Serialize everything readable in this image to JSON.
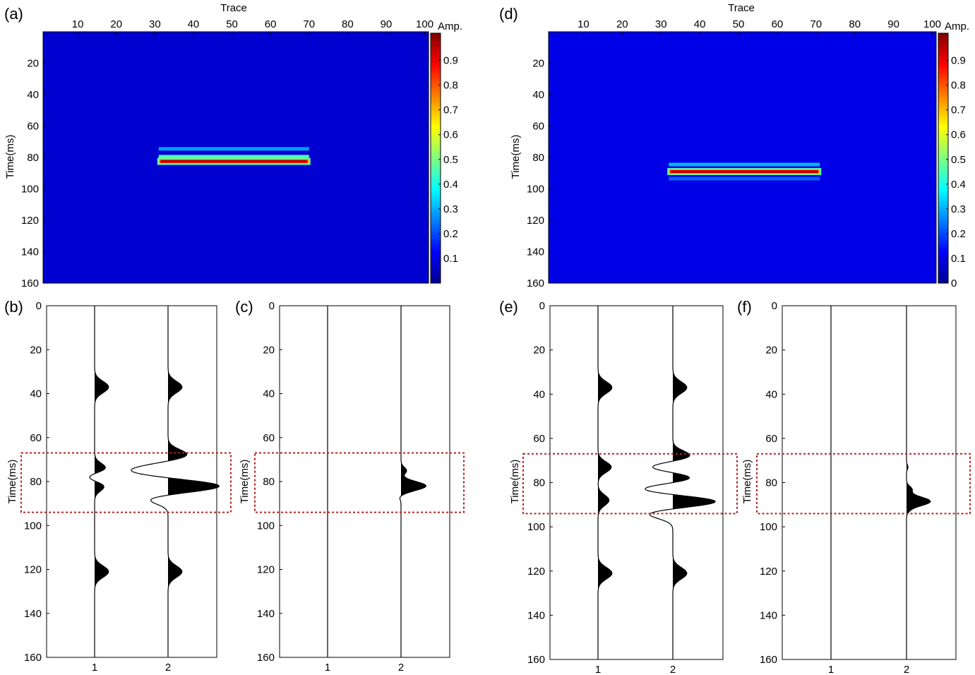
{
  "figure": {
    "panels": [
      {
        "id": "a",
        "label": "(a)",
        "type": "heatmap",
        "xlabel": "Trace",
        "ylabel": "Time(ms)",
        "colorbar_label": "Amp.",
        "xticks": [
          10,
          20,
          30,
          40,
          50,
          60,
          70,
          80,
          90,
          100
        ],
        "yticks": [
          20,
          40,
          60,
          80,
          100,
          120,
          140,
          160
        ],
        "colorbar_ticks": [
          "0.1",
          "0.2",
          "0.3",
          "0.4",
          "0.5",
          "0.6",
          "0.7",
          "0.8",
          "0.9"
        ]
      },
      {
        "id": "d",
        "label": "(d)",
        "type": "heatmap",
        "xlabel": "Trace",
        "ylabel": "Time(ms)",
        "colorbar_label": "Amp.",
        "xticks": [
          10,
          20,
          30,
          40,
          50,
          60,
          70,
          80,
          90,
          100
        ],
        "yticks": [
          20,
          40,
          60,
          80,
          100,
          120,
          140,
          160
        ],
        "colorbar_ticks": [
          "0",
          "0.1",
          "0.2",
          "0.3",
          "0.4",
          "0.5",
          "0.6",
          "0.7",
          "0.8",
          "0.9"
        ]
      },
      {
        "id": "b",
        "label": "(b)",
        "type": "wiggle",
        "ylabel": "Time(ms)",
        "xticks": [
          "1",
          "2"
        ],
        "yticks": [
          0,
          20,
          40,
          60,
          80,
          100,
          120,
          140,
          160
        ]
      },
      {
        "id": "c",
        "label": "(c)",
        "type": "wiggle",
        "ylabel": "Time(ms)",
        "xticks": [
          "1",
          "2"
        ],
        "yticks": [
          0,
          20,
          40,
          60,
          80,
          100,
          120,
          140,
          160
        ]
      },
      {
        "id": "e",
        "label": "(e)",
        "type": "wiggle",
        "ylabel": "Time(ms)",
        "xticks": [
          "1",
          "2"
        ],
        "yticks": [
          0,
          20,
          40,
          60,
          80,
          100,
          120,
          140,
          160
        ]
      },
      {
        "id": "f",
        "label": "(f)",
        "type": "wiggle",
        "ylabel": "Time(ms)",
        "xticks": [
          "1",
          "2"
        ],
        "yticks": [
          0,
          20,
          40,
          60,
          80,
          100,
          120,
          140,
          160
        ]
      }
    ]
  },
  "chart_data": [
    {
      "panel": "a",
      "type": "heatmap",
      "xlim": [
        1,
        101
      ],
      "ylim": [
        0,
        160
      ],
      "clim": [
        0,
        1
      ],
      "background_amplitude": 0.08,
      "reflectors": [
        {
          "x_range": [
            31,
            70
          ],
          "t": 74.5,
          "amplitude": 0.28
        },
        {
          "x_range": [
            31,
            70
          ],
          "t": 79.5,
          "amplitude": 0.45
        },
        {
          "x_range": [
            31,
            70
          ],
          "t": 82.5,
          "amplitude": 1.0
        }
      ]
    },
    {
      "panel": "d",
      "type": "heatmap",
      "xlim": [
        1,
        101
      ],
      "ylim": [
        0,
        160
      ],
      "clim": [
        0,
        1
      ],
      "background_amplitude": 0.1,
      "reflectors": [
        {
          "x_range": [
            32,
            71
          ],
          "t": 84.5,
          "amplitude": 0.3
        },
        {
          "x_range": [
            32,
            71
          ],
          "t": 89,
          "amplitude": 1.0
        },
        {
          "x_range": [
            32,
            71
          ],
          "t": 93.5,
          "amplitude": 0.22
        }
      ]
    },
    {
      "panel": "b",
      "type": "wiggle",
      "ylim": [
        0,
        160
      ],
      "highlight_box_time": [
        67,
        94
      ],
      "traces": [
        {
          "name": "1",
          "events": [
            {
              "t": 37,
              "amp": 0.38,
              "w": 2.6
            },
            {
              "t": 74,
              "amp": 0.32,
              "w": 2.2
            },
            {
              "t": 78,
              "amp": -0.25,
              "w": 2.0
            },
            {
              "t": 82,
              "amp": 0.28,
              "w": 2.2
            },
            {
              "t": 121,
              "amp": 0.38,
              "w": 2.6
            }
          ]
        },
        {
          "name": "2",
          "events": [
            {
              "t": 37,
              "amp": 0.38,
              "w": 2.6
            },
            {
              "t": 68,
              "amp": 0.55,
              "w": 2.5
            },
            {
              "t": 75,
              "amp": -1.05,
              "w": 2.8
            },
            {
              "t": 82,
              "amp": 1.45,
              "w": 2.6
            },
            {
              "t": 88,
              "amp": -0.55,
              "w": 2.2
            },
            {
              "t": 121,
              "amp": 0.38,
              "w": 2.6
            }
          ]
        }
      ]
    },
    {
      "panel": "c",
      "type": "wiggle",
      "ylim": [
        0,
        160
      ],
      "highlight_box_time": [
        67,
        94
      ],
      "traces": [
        {
          "name": "1",
          "events": []
        },
        {
          "name": "2",
          "events": [
            {
              "t": 75,
              "amp": 0.15,
              "w": 1.5
            },
            {
              "t": 82,
              "amp": 0.68,
              "w": 2.0
            },
            {
              "t": 87,
              "amp": -0.05,
              "w": 1.2
            }
          ]
        }
      ]
    },
    {
      "panel": "e",
      "type": "wiggle",
      "ylim": [
        0,
        160
      ],
      "highlight_box_time": [
        67,
        94
      ],
      "traces": [
        {
          "name": "1",
          "events": [
            {
              "t": 37,
              "amp": 0.38,
              "w": 2.6
            },
            {
              "t": 73,
              "amp": 0.36,
              "w": 2.4
            },
            {
              "t": 88,
              "amp": 0.3,
              "w": 2.4
            },
            {
              "t": 121,
              "amp": 0.38,
              "w": 2.6
            }
          ]
        },
        {
          "name": "2",
          "events": [
            {
              "t": 37,
              "amp": 0.38,
              "w": 2.6
            },
            {
              "t": 68,
              "amp": 0.5,
              "w": 2.3
            },
            {
              "t": 73,
              "amp": -0.65,
              "w": 2.2
            },
            {
              "t": 78,
              "amp": 0.6,
              "w": 2.3
            },
            {
              "t": 83,
              "amp": -0.9,
              "w": 2.4
            },
            {
              "t": 88.5,
              "amp": 1.25,
              "w": 2.4
            },
            {
              "t": 94,
              "amp": -0.7,
              "w": 2.2
            },
            {
              "t": 121,
              "amp": 0.38,
              "w": 2.6
            }
          ]
        }
      ]
    },
    {
      "panel": "f",
      "type": "wiggle",
      "ylim": [
        0,
        160
      ],
      "highlight_box_time": [
        67,
        94
      ],
      "traces": [
        {
          "name": "1",
          "events": []
        },
        {
          "name": "2",
          "events": [
            {
              "t": 73,
              "amp": 0.04,
              "w": 1.0
            },
            {
              "t": 83,
              "amp": 0.14,
              "w": 1.4
            },
            {
              "t": 88.5,
              "amp": 0.65,
              "w": 2.0
            },
            {
              "t": 93,
              "amp": 0.03,
              "w": 1.0
            }
          ]
        }
      ]
    }
  ],
  "colors": {
    "colormap": "jet",
    "trace_fill": "#000000",
    "highlight_box": "#b22222"
  }
}
